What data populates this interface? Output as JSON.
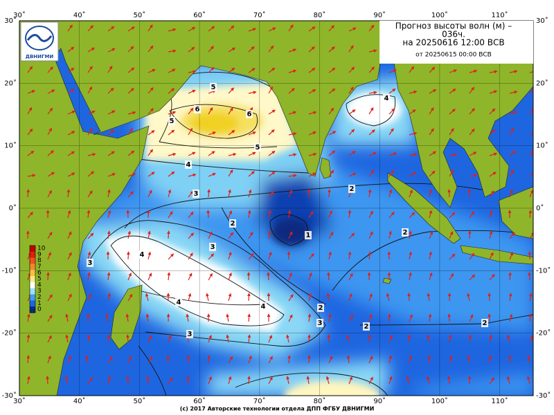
{
  "header": {
    "title_lines": [
      "Прогноз высоты волн (м) –",
      "036ч.",
      "на 20250616 12:00 ВСВ"
    ],
    "subtitle": "от 20250615 00:00 ВСВ"
  },
  "logo": {
    "text": "ДВНИГМИ"
  },
  "lon_labels": [
    "30˚",
    "40˚",
    "50˚",
    "60˚",
    "70˚",
    "80˚",
    "90˚",
    "100˚",
    "110˚"
  ],
  "lat_labels": [
    "30˚",
    "20˚",
    "10˚",
    "0˚",
    "-10˚",
    "-20˚",
    "-30˚"
  ],
  "contour_labels": [
    "5",
    "6",
    "6",
    "5",
    "5",
    "4",
    "3",
    "2",
    "1",
    "2",
    "2",
    "3",
    "4",
    "4",
    "4",
    "3",
    "2",
    "3",
    "2",
    "2",
    "4",
    "3"
  ],
  "colorbar": {
    "labels": [
      10,
      9,
      8,
      7,
      6,
      5,
      4,
      3,
      2,
      1,
      0
    ]
  },
  "footer": "(c) 2017 Авторские технологии отдела ДПП ФГБУ ДВНИГМИ"
}
